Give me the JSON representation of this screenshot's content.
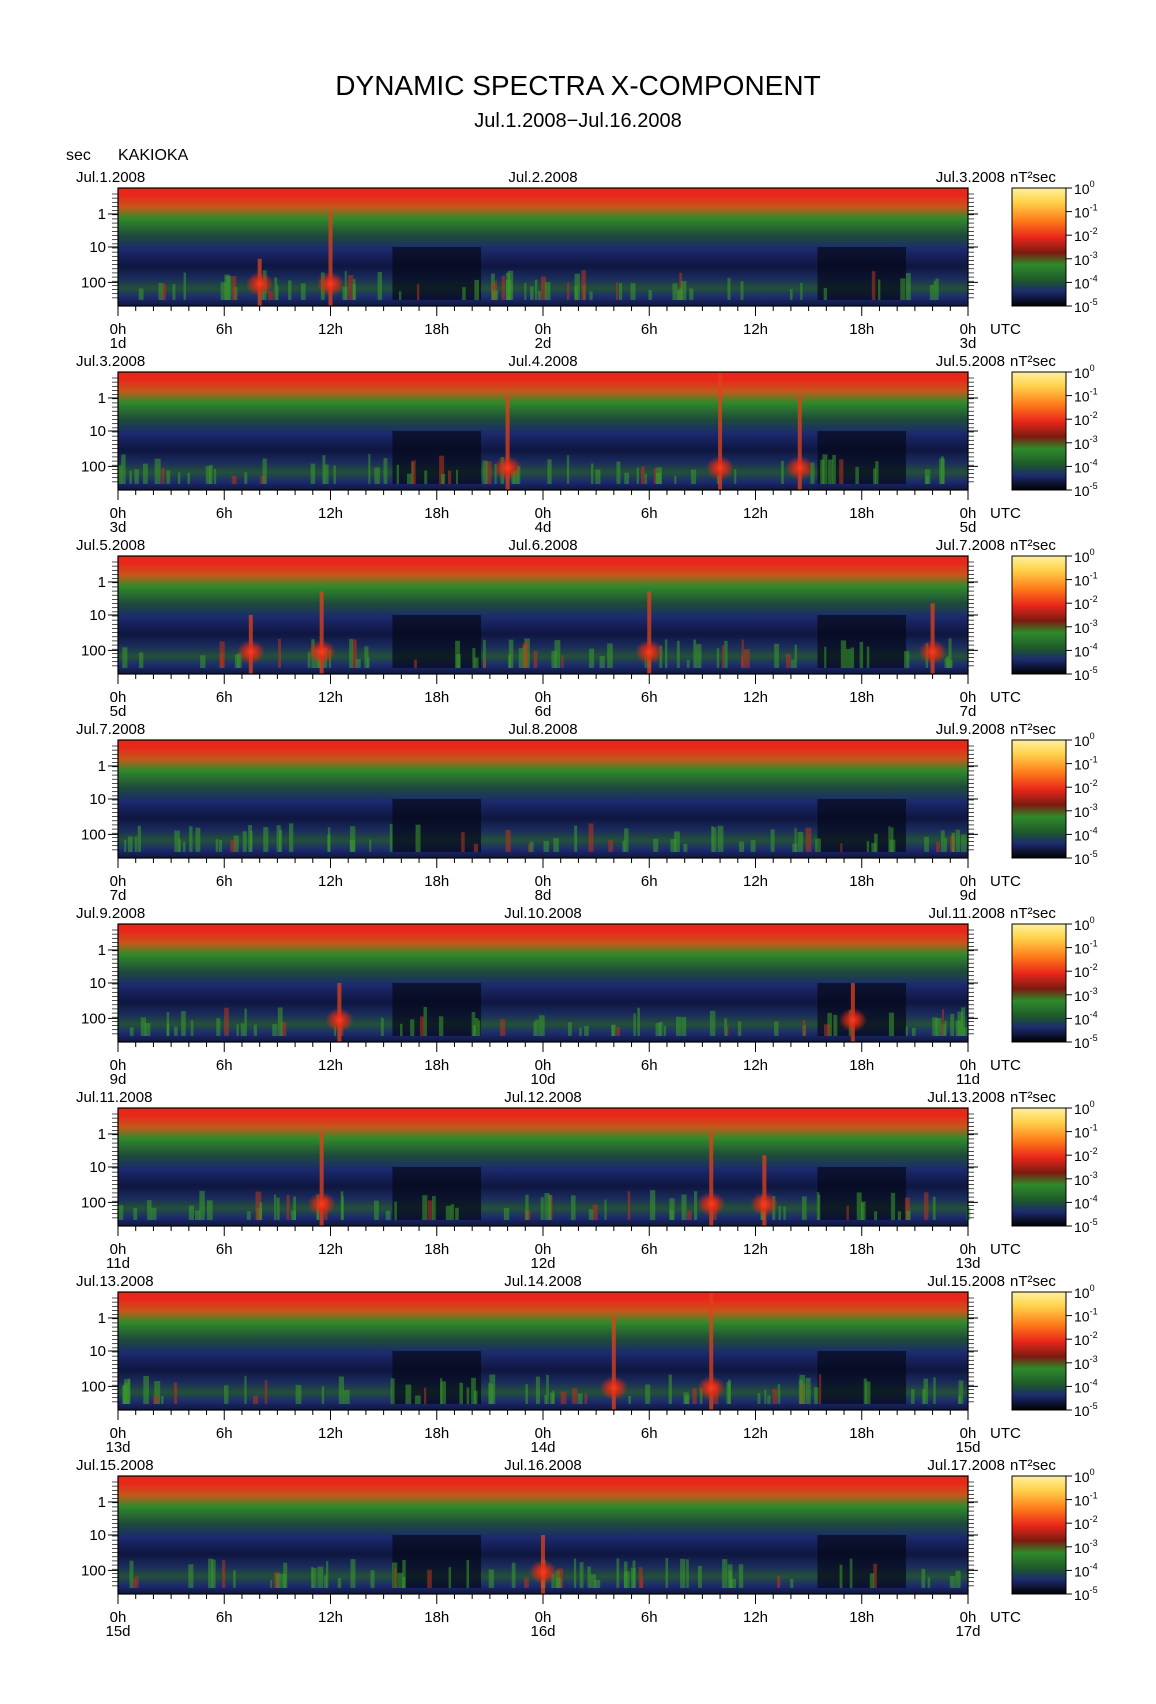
{
  "title": "DYNAMIC SPECTRA X-COMPONENT",
  "subtitle": "Jul.1.2008−Jul.16.2008",
  "ylabel": "sec",
  "station": "KAKIOKA",
  "colorbar_unit": "nT²sec",
  "x_unit": "UTC",
  "colors": {
    "low": "#000000",
    "mid_low": "#1c2a6e",
    "mid": "#2f8a2a",
    "high": "#e8261a",
    "max": "#fff0a0"
  },
  "chart_data": {
    "type": "heatmap",
    "y_axis": {
      "label": "sec",
      "scale": "log",
      "ticks": [
        "1",
        "10",
        "100"
      ]
    },
    "colorbar": {
      "unit": "nT²sec",
      "scale": "log",
      "range": [
        1e-05,
        1
      ],
      "ticks": [
        {
          "base": "10",
          "exp": "0"
        },
        {
          "base": "10",
          "exp": "-1"
        },
        {
          "base": "10",
          "exp": "-2"
        },
        {
          "base": "10",
          "exp": "-3"
        },
        {
          "base": "10",
          "exp": "-4"
        },
        {
          "base": "10",
          "exp": "-5"
        }
      ]
    },
    "x_ticks": [
      "0h",
      "6h",
      "12h",
      "18h",
      "0h",
      "6h",
      "12h",
      "18h",
      "0h"
    ],
    "panels": [
      {
        "date_left": "Jul.1.2008",
        "date_mid": "Jul.2.2008",
        "date_right": "Jul.3.2008",
        "day_labels": [
          "1d",
          "2d",
          "3d"
        ],
        "events": [
          {
            "hour": 8.0,
            "strength": 0.4
          },
          {
            "hour": 12.0,
            "strength": 0.8
          }
        ]
      },
      {
        "date_left": "Jul.3.2008",
        "date_mid": "Jul.4.2008",
        "date_right": "Jul.5.2008",
        "day_labels": [
          "3d",
          "4d",
          "5d"
        ],
        "events": [
          {
            "hour": 22.0,
            "strength": 0.8
          },
          {
            "hour": 34.0,
            "strength": 1.0
          },
          {
            "hour": 38.5,
            "strength": 0.8
          }
        ]
      },
      {
        "date_left": "Jul.5.2008",
        "date_mid": "Jul.6.2008",
        "date_right": "Jul.7.2008",
        "day_labels": [
          "5d",
          "6d",
          "7d"
        ],
        "events": [
          {
            "hour": 7.5,
            "strength": 0.5
          },
          {
            "hour": 11.5,
            "strength": 0.7
          },
          {
            "hour": 30.0,
            "strength": 0.7
          },
          {
            "hour": 46.0,
            "strength": 0.6
          }
        ]
      },
      {
        "date_left": "Jul.7.2008",
        "date_mid": "Jul.8.2008",
        "date_right": "Jul.9.2008",
        "day_labels": [
          "7d",
          "8d",
          "9d"
        ],
        "events": []
      },
      {
        "date_left": "Jul.9.2008",
        "date_mid": "Jul.10.2008",
        "date_right": "Jul.11.2008",
        "day_labels": [
          "9d",
          "10d",
          "11d"
        ],
        "events": [
          {
            "hour": 12.5,
            "strength": 0.5
          },
          {
            "hour": 41.5,
            "strength": 0.5
          }
        ]
      },
      {
        "date_left": "Jul.11.2008",
        "date_mid": "Jul.12.2008",
        "date_right": "Jul.13.2008",
        "day_labels": [
          "11d",
          "12d",
          "13d"
        ],
        "events": [
          {
            "hour": 11.5,
            "strength": 0.8
          },
          {
            "hour": 33.5,
            "strength": 0.8
          },
          {
            "hour": 36.5,
            "strength": 0.6
          }
        ]
      },
      {
        "date_left": "Jul.13.2008",
        "date_mid": "Jul.14.2008",
        "date_right": "Jul.15.2008",
        "day_labels": [
          "13d",
          "14d",
          "15d"
        ],
        "events": [
          {
            "hour": 33.5,
            "strength": 1.0
          },
          {
            "hour": 28.0,
            "strength": 0.8
          }
        ]
      },
      {
        "date_left": "Jul.15.2008",
        "date_mid": "Jul.16.2008",
        "date_right": "Jul.17.2008",
        "day_labels": [
          "15d",
          "16d",
          "17d"
        ],
        "events": [
          {
            "hour": 24.0,
            "strength": 0.5
          }
        ]
      }
    ]
  }
}
